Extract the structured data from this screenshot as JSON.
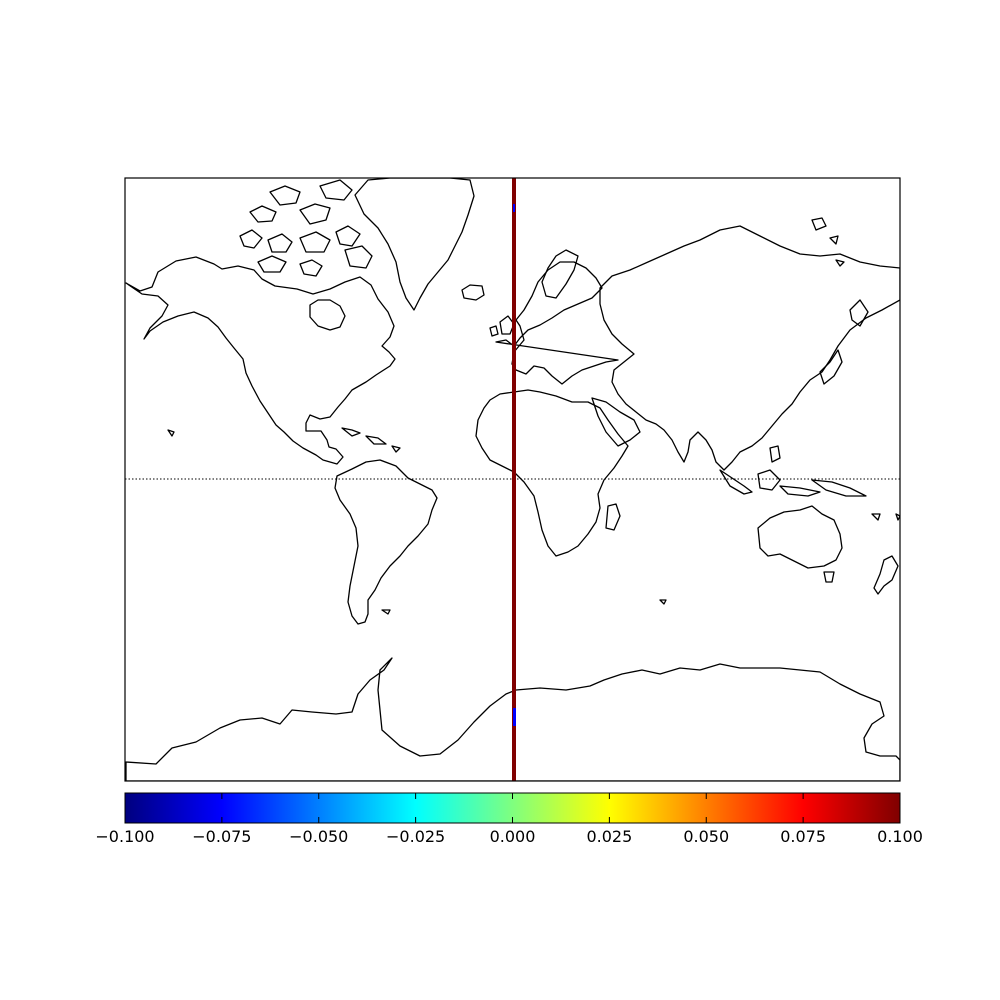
{
  "map": {
    "projection": "mercator",
    "coastline_color": "#000000",
    "equator_style": "dotted",
    "field_line": {
      "description": "thin vertical stripe of plotted values along the prime meridian",
      "dominant_color": "#800000",
      "minor_color": "#0000ff"
    }
  },
  "colorbar": {
    "colormap": "jet",
    "orientation": "horizontal",
    "vmin": -0.1,
    "vmax": 0.1,
    "stops": [
      "#00007f",
      "#0000ff",
      "#007fff",
      "#00ffff",
      "#7fff7f",
      "#ffff00",
      "#ff7f00",
      "#ff0000",
      "#7f0000"
    ],
    "tick_values": [
      -0.1,
      -0.075,
      -0.05,
      -0.025,
      0.0,
      0.025,
      0.05,
      0.075,
      0.1
    ],
    "tick_labels": [
      "−0.100",
      "−0.075",
      "−0.050",
      "−0.025",
      "0.000",
      "0.025",
      "0.050",
      "0.075",
      "0.100"
    ]
  }
}
